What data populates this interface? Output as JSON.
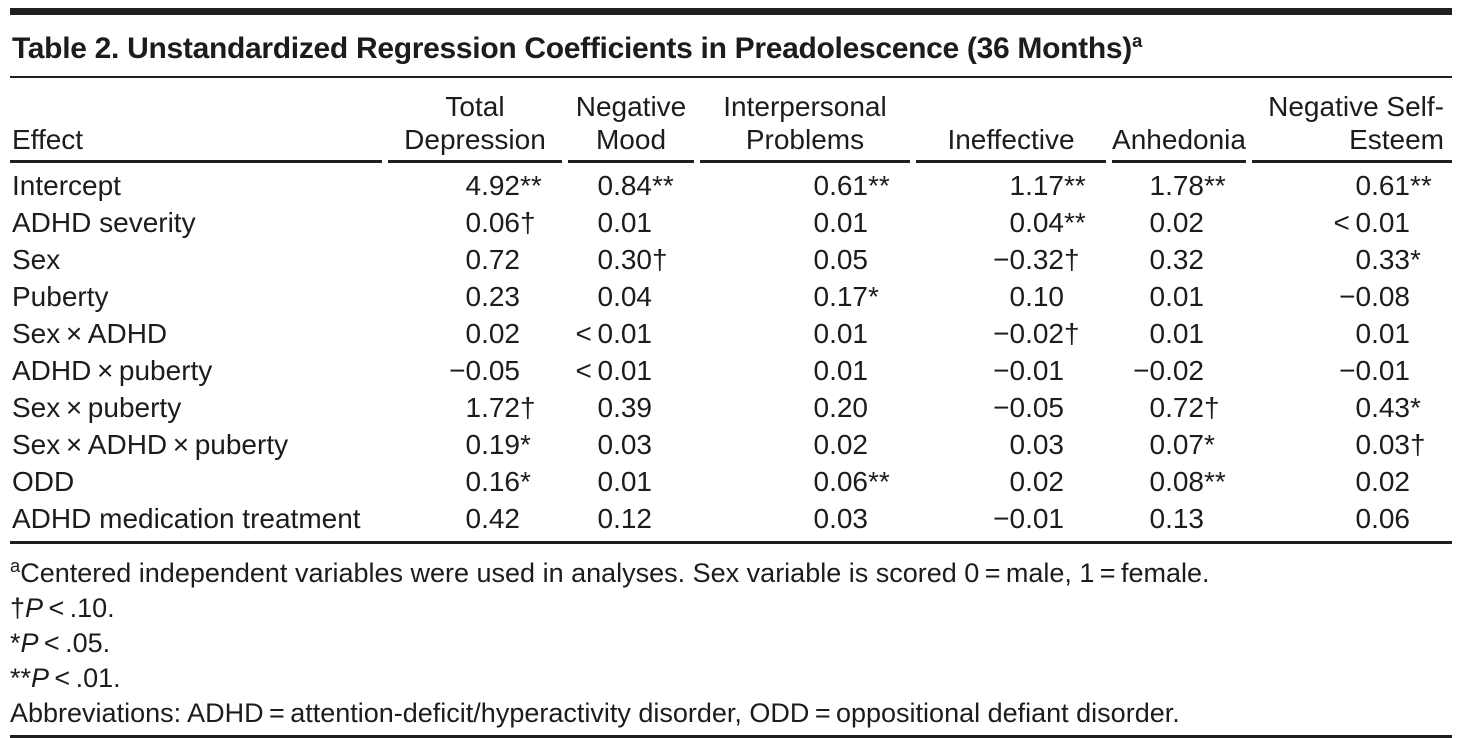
{
  "colors": {
    "text": "#1c1c1c",
    "rule": "#1f1f1f",
    "background": "#ffffff"
  },
  "table": {
    "title": {
      "text": "Table 2. Unstandardized Regression Coefficients in Preadolescence (36 Months)",
      "footnote_mark": "a"
    },
    "column_headers": [
      "Effect",
      "Total Depression",
      "Negative Mood",
      "Interpersonal Problems",
      "Ineffective",
      "Anhedonia",
      "Negative Self-Esteem"
    ],
    "rows": [
      {
        "label": "Intercept",
        "values": [
          {
            "v": "4.92",
            "m": "**"
          },
          {
            "v": "0.84",
            "m": "**"
          },
          {
            "v": "0.61",
            "m": "**"
          },
          {
            "v": "1.17",
            "m": "**"
          },
          {
            "v": "1.78",
            "m": "**"
          },
          {
            "v": "0.61",
            "m": "**"
          }
        ]
      },
      {
        "label": "ADHD severity",
        "values": [
          {
            "v": "0.06",
            "m": "†"
          },
          {
            "v": "0.01",
            "m": ""
          },
          {
            "v": "0.01",
            "m": ""
          },
          {
            "v": "0.04",
            "m": "**"
          },
          {
            "v": "0.02",
            "m": ""
          },
          {
            "v": "< 0.01",
            "m": ""
          }
        ]
      },
      {
        "label": "Sex",
        "values": [
          {
            "v": "0.72",
            "m": ""
          },
          {
            "v": "0.30",
            "m": "†"
          },
          {
            "v": "0.05",
            "m": ""
          },
          {
            "v": "−0.32",
            "m": "†"
          },
          {
            "v": "0.32",
            "m": ""
          },
          {
            "v": "0.33",
            "m": "*"
          }
        ]
      },
      {
        "label": "Puberty",
        "values": [
          {
            "v": "0.23",
            "m": ""
          },
          {
            "v": "0.04",
            "m": ""
          },
          {
            "v": "0.17",
            "m": "*"
          },
          {
            "v": "0.10",
            "m": ""
          },
          {
            "v": "0.01",
            "m": ""
          },
          {
            "v": "−0.08",
            "m": ""
          }
        ]
      },
      {
        "label": "Sex × ADHD",
        "values": [
          {
            "v": "0.02",
            "m": ""
          },
          {
            "v": "< 0.01",
            "m": ""
          },
          {
            "v": "0.01",
            "m": ""
          },
          {
            "v": "−0.02",
            "m": "†"
          },
          {
            "v": "0.01",
            "m": ""
          },
          {
            "v": "0.01",
            "m": ""
          }
        ]
      },
      {
        "label": "ADHD × puberty",
        "values": [
          {
            "v": "−0.05",
            "m": ""
          },
          {
            "v": "< 0.01",
            "m": ""
          },
          {
            "v": "0.01",
            "m": ""
          },
          {
            "v": "−0.01",
            "m": ""
          },
          {
            "v": "−0.02",
            "m": ""
          },
          {
            "v": "−0.01",
            "m": ""
          }
        ]
      },
      {
        "label": "Sex × puberty",
        "values": [
          {
            "v": "1.72",
            "m": "†"
          },
          {
            "v": "0.39",
            "m": ""
          },
          {
            "v": "0.20",
            "m": ""
          },
          {
            "v": "−0.05",
            "m": ""
          },
          {
            "v": "0.72",
            "m": "†"
          },
          {
            "v": "0.43",
            "m": "*"
          }
        ]
      },
      {
        "label": "Sex × ADHD × puberty",
        "values": [
          {
            "v": "0.19",
            "m": "*"
          },
          {
            "v": "0.03",
            "m": ""
          },
          {
            "v": "0.02",
            "m": ""
          },
          {
            "v": "0.03",
            "m": ""
          },
          {
            "v": "0.07",
            "m": "*"
          },
          {
            "v": "0.03",
            "m": "†"
          }
        ]
      },
      {
        "label": "ODD",
        "values": [
          {
            "v": "0.16",
            "m": "*"
          },
          {
            "v": "0.01",
            "m": ""
          },
          {
            "v": "0.06",
            "m": "**"
          },
          {
            "v": "0.02",
            "m": ""
          },
          {
            "v": "0.08",
            "m": "**"
          },
          {
            "v": "0.02",
            "m": ""
          }
        ]
      },
      {
        "label": "ADHD medication treatment",
        "values": [
          {
            "v": "0.42",
            "m": ""
          },
          {
            "v": "0.12",
            "m": ""
          },
          {
            "v": "0.03",
            "m": ""
          },
          {
            "v": "−0.01",
            "m": ""
          },
          {
            "v": "0.13",
            "m": ""
          },
          {
            "v": "0.06",
            "m": ""
          }
        ]
      }
    ],
    "footnotes": [
      {
        "sup": "a",
        "parts": [
          {
            "text": "Centered independent variables were used in analyses. Sex variable is scored 0 = male, 1 = female.",
            "italic": false
          }
        ]
      },
      {
        "sup": null,
        "parts": [
          {
            "text": "†",
            "italic": false
          },
          {
            "text": "P",
            "italic": true
          },
          {
            "text": " < .10.",
            "italic": false
          }
        ]
      },
      {
        "sup": null,
        "parts": [
          {
            "text": "*",
            "italic": false
          },
          {
            "text": "P",
            "italic": true
          },
          {
            "text": " < .05.",
            "italic": false
          }
        ]
      },
      {
        "sup": null,
        "parts": [
          {
            "text": "**",
            "italic": false
          },
          {
            "text": "P",
            "italic": true
          },
          {
            "text": " < .01.",
            "italic": false
          }
        ]
      },
      {
        "sup": null,
        "parts": [
          {
            "text": "Abbreviations: ADHD = attention-deficit/hyperactivity disorder, ODD = oppositional defiant disorder.",
            "italic": false
          }
        ]
      }
    ]
  }
}
